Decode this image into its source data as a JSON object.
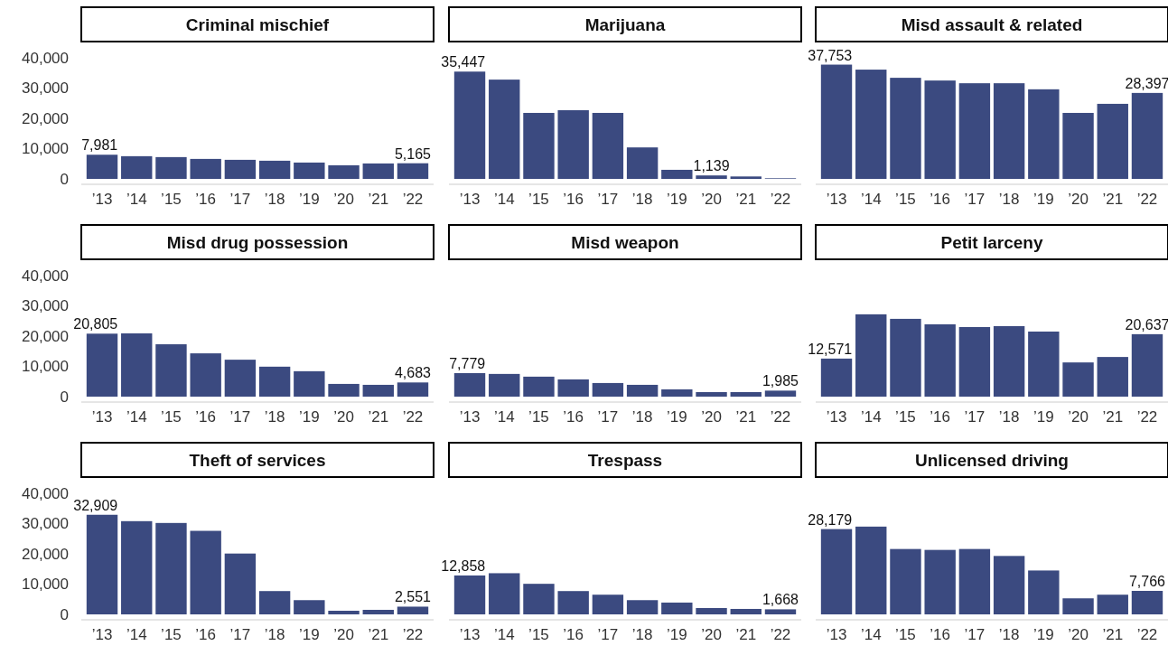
{
  "chart_data": [
    {
      "type": "bar",
      "title": "Criminal mischief",
      "categories": [
        "’13",
        "’14",
        "’15",
        "’16",
        "’17",
        "’18",
        "’19",
        "’20",
        "’21",
        "’22"
      ],
      "color": "#3b4a80",
      "ylim": [
        0,
        40000
      ],
      "yticks": [
        {
          "value": 0,
          "label": "0"
        },
        {
          "value": 10000,
          "label": "10,000"
        },
        {
          "value": 20000,
          "label": "20,000"
        },
        {
          "value": 30000,
          "label": "30,000"
        },
        {
          "value": 40000,
          "label": "40,000"
        }
      ],
      "values": [
        7981,
        7500,
        7200,
        6600,
        6300,
        6000,
        5400,
        4500,
        5100,
        5165
      ],
      "value_labels": [
        "7,981",
        null,
        null,
        null,
        null,
        null,
        null,
        null,
        null,
        "5,165"
      ]
    },
    {
      "type": "bar",
      "title": "Marijuana",
      "categories": [
        "’13",
        "’14",
        "’15",
        "’16",
        "’17",
        "’18",
        "’19",
        "’20",
        "’21",
        "’22"
      ],
      "color": "#3b4a80",
      "ylim": [
        0,
        40000
      ],
      "tick_labels": "x",
      "values": [
        35447,
        32800,
        21800,
        22700,
        21800,
        10400,
        3000,
        1139,
        800,
        200
      ],
      "value_labels": [
        "35,447",
        null,
        null,
        null,
        null,
        null,
        null,
        "1,139",
        null,
        null
      ]
    },
    {
      "type": "bar",
      "title": "Misd assault & related",
      "categories": [
        "’13",
        "’14",
        "’15",
        "’16",
        "’17",
        "’18",
        "’19",
        "’20",
        "’21",
        "’22"
      ],
      "color": "#3b4a80",
      "ylim": [
        0,
        40000
      ],
      "tick_labels": "x",
      "values": [
        37753,
        36100,
        33400,
        32500,
        31600,
        31600,
        29600,
        21800,
        24800,
        28397
      ],
      "value_labels": [
        "37,753",
        null,
        null,
        null,
        null,
        null,
        null,
        null,
        null,
        "28,397"
      ]
    },
    {
      "type": "bar",
      "title": "Misd drug possession",
      "categories": [
        "’13",
        "’14",
        "’15",
        "’16",
        "’17",
        "’18",
        "’19",
        "’20",
        "’21",
        "’22"
      ],
      "color": "#3b4a80",
      "ylim": [
        0,
        40000
      ],
      "yticks": [
        {
          "value": 0,
          "label": "0"
        },
        {
          "value": 10000,
          "label": "10,000"
        },
        {
          "value": 20000,
          "label": "20,000"
        },
        {
          "value": 30000,
          "label": "30,000"
        },
        {
          "value": 40000,
          "label": "40,000"
        }
      ],
      "values": [
        20805,
        20900,
        17300,
        14300,
        12200,
        9900,
        8400,
        4200,
        3900,
        4683
      ],
      "value_labels": [
        "20,805",
        null,
        null,
        null,
        null,
        null,
        null,
        null,
        null,
        "4,683"
      ]
    },
    {
      "type": "bar",
      "title": "Misd weapon",
      "categories": [
        "’13",
        "’14",
        "’15",
        "’16",
        "’17",
        "’18",
        "’19",
        "’20",
        "’21",
        "’22"
      ],
      "color": "#3b4a80",
      "ylim": [
        0,
        40000
      ],
      "tick_labels": "x",
      "values": [
        7779,
        7500,
        6600,
        5700,
        4500,
        3900,
        2400,
        1500,
        1500,
        1985
      ],
      "value_labels": [
        "7,779",
        null,
        null,
        null,
        null,
        null,
        null,
        null,
        null,
        "1,985"
      ]
    },
    {
      "type": "bar",
      "title": "Petit larceny",
      "categories": [
        "’13",
        "’14",
        "’15",
        "’16",
        "’17",
        "’18",
        "’19",
        "’20",
        "’21",
        "’22"
      ],
      "color": "#3b4a80",
      "ylim": [
        0,
        40000
      ],
      "tick_labels": "x",
      "values": [
        12571,
        27200,
        25700,
        23900,
        23000,
        23300,
        21500,
        11300,
        13100,
        20637
      ],
      "value_labels": [
        "12,571",
        null,
        null,
        null,
        null,
        null,
        null,
        null,
        null,
        "20,637"
      ]
    },
    {
      "type": "bar",
      "title": "Theft of services",
      "categories": [
        "’13",
        "’14",
        "’15",
        "’16",
        "’17",
        "’18",
        "’19",
        "’20",
        "’21",
        "’22"
      ],
      "color": "#3b4a80",
      "ylim": [
        0,
        40000
      ],
      "yticks": [
        {
          "value": 0,
          "label": "0"
        },
        {
          "value": 10000,
          "label": "10,000"
        },
        {
          "value": 20000,
          "label": "20,000"
        },
        {
          "value": 30000,
          "label": "30,000"
        },
        {
          "value": 40000,
          "label": "40,000"
        }
      ],
      "values": [
        32909,
        30800,
        30200,
        27600,
        20100,
        7700,
        4700,
        1200,
        1500,
        2551
      ],
      "value_labels": [
        "32,909",
        null,
        null,
        null,
        null,
        null,
        null,
        null,
        null,
        "2,551"
      ]
    },
    {
      "type": "bar",
      "title": "Trespass",
      "categories": [
        "’13",
        "’14",
        "’15",
        "’16",
        "’17",
        "’18",
        "’19",
        "’20",
        "’21",
        "’22"
      ],
      "color": "#3b4a80",
      "ylim": [
        0,
        40000
      ],
      "tick_labels": "x",
      "values": [
        12858,
        13600,
        10100,
        7700,
        6500,
        4700,
        3900,
        2100,
        1800,
        1668
      ],
      "value_labels": [
        "12,858",
        null,
        null,
        null,
        null,
        null,
        null,
        null,
        null,
        "1,668"
      ]
    },
    {
      "type": "bar",
      "title": "Unlicensed driving",
      "categories": [
        "’13",
        "’14",
        "’15",
        "’16",
        "’17",
        "’18",
        "’19",
        "’20",
        "’21",
        "’22"
      ],
      "color": "#3b4a80",
      "ylim": [
        0,
        40000
      ],
      "tick_labels": "x",
      "values": [
        28179,
        29000,
        21600,
        21300,
        21600,
        19300,
        14500,
        5300,
        6500,
        7766
      ],
      "value_labels": [
        "28,179",
        null,
        null,
        null,
        null,
        null,
        null,
        null,
        null,
        "7,766"
      ]
    }
  ]
}
